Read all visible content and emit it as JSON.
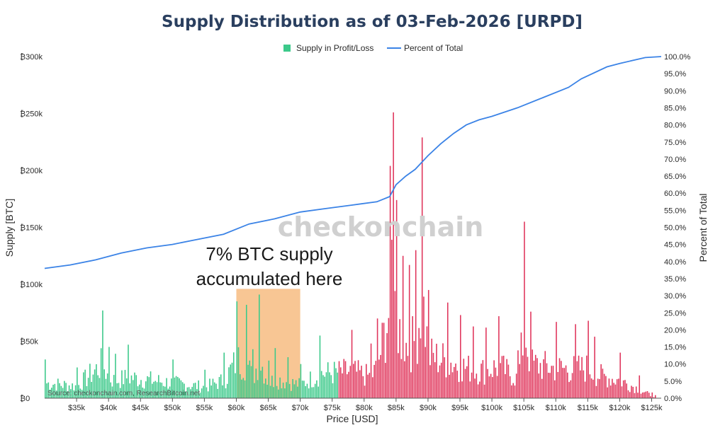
{
  "chart_data": {
    "type": "bar",
    "title": "Supply Distribution as of 03-Feb-2026 [URPD]",
    "xlabel": "Price [USD]",
    "ylabel": "Supply [BTC]",
    "y2label": "Percent of Total",
    "xlim": [
      30000,
      126500
    ],
    "ylim": [
      0,
      300000
    ],
    "y2lim": [
      0,
      100
    ],
    "x_ticks": [
      "$35k",
      "$40k",
      "$45k",
      "$50k",
      "$55k",
      "$60k",
      "$65k",
      "$70k",
      "$75k",
      "$80k",
      "$85k",
      "$90k",
      "$95k",
      "$100k",
      "$105k",
      "$110k",
      "$115k",
      "$120k",
      "$125k"
    ],
    "x_tick_values": [
      35000,
      40000,
      45000,
      50000,
      55000,
      60000,
      65000,
      70000,
      75000,
      80000,
      85000,
      90000,
      95000,
      100000,
      105000,
      110000,
      115000,
      120000,
      125000
    ],
    "y_ticks": [
      "₿0",
      "₿50k",
      "₿100k",
      "₿150k",
      "₿200k",
      "₿250k",
      "₿300k"
    ],
    "y_tick_values": [
      0,
      50000,
      100000,
      150000,
      200000,
      250000,
      300000
    ],
    "y2_ticks": [
      "0.0%",
      "5.0%",
      "10.0%",
      "15.0%",
      "20.0%",
      "25.0%",
      "30.0%",
      "35.0%",
      "40.0%",
      "45.0%",
      "50.0%",
      "55.0%",
      "60.0%",
      "65.0%",
      "70.0%",
      "75.0%",
      "80.0%",
      "85.0%",
      "90.0%",
      "95.0%",
      "100.0%"
    ],
    "y2_tick_values": [
      0,
      5,
      10,
      15,
      20,
      25,
      30,
      35,
      40,
      45,
      50,
      55,
      60,
      65,
      70,
      75,
      80,
      85,
      90,
      95,
      100
    ],
    "legend": [
      "Supply in Profit/Loss",
      "Percent of Total"
    ],
    "legend_position": "top-center",
    "grid": false,
    "colors": {
      "profit": "#3cc98a",
      "loss": "#e0365c",
      "percent_line": "#3b83e6",
      "highlight": "#f5b06b",
      "title": "#2a3f5f"
    },
    "profit_loss_boundary": 76000,
    "bar_sample": [
      {
        "x": 30000,
        "y": 34000
      },
      {
        "x": 35000,
        "y": 27000
      },
      {
        "x": 39000,
        "y": 77000
      },
      {
        "x": 40000,
        "y": 45000
      },
      {
        "x": 41000,
        "y": 39000
      },
      {
        "x": 43000,
        "y": 47000
      },
      {
        "x": 50000,
        "y": 34000
      },
      {
        "x": 55000,
        "y": 25000
      },
      {
        "x": 58000,
        "y": 40000
      },
      {
        "x": 60000,
        "y": 85000
      },
      {
        "x": 61500,
        "y": 82000
      },
      {
        "x": 62500,
        "y": 43000
      },
      {
        "x": 63500,
        "y": 91000
      },
      {
        "x": 65000,
        "y": 33000
      },
      {
        "x": 66000,
        "y": 44000
      },
      {
        "x": 68000,
        "y": 36000
      },
      {
        "x": 70000,
        "y": 30000
      },
      {
        "x": 73000,
        "y": 55000
      },
      {
        "x": 78000,
        "y": 60000
      },
      {
        "x": 81000,
        "y": 48000
      },
      {
        "x": 82000,
        "y": 70000
      },
      {
        "x": 84000,
        "y": 204000
      },
      {
        "x": 84400,
        "y": 251000
      },
      {
        "x": 85000,
        "y": 174000
      },
      {
        "x": 86000,
        "y": 125000
      },
      {
        "x": 87000,
        "y": 117000
      },
      {
        "x": 88000,
        "y": 130000
      },
      {
        "x": 89000,
        "y": 229000
      },
      {
        "x": 90000,
        "y": 95000
      },
      {
        "x": 93000,
        "y": 84000
      },
      {
        "x": 95000,
        "y": 73000
      },
      {
        "x": 97000,
        "y": 63000
      },
      {
        "x": 99000,
        "y": 62000
      },
      {
        "x": 101000,
        "y": 72000
      },
      {
        "x": 104000,
        "y": 42000
      },
      {
        "x": 105000,
        "y": 155000
      },
      {
        "x": 106000,
        "y": 76000
      },
      {
        "x": 110000,
        "y": 67000
      },
      {
        "x": 113000,
        "y": 65000
      },
      {
        "x": 115000,
        "y": 68000
      },
      {
        "x": 116000,
        "y": 54000
      },
      {
        "x": 120000,
        "y": 40000
      },
      {
        "x": 123000,
        "y": 20000
      },
      {
        "x": 125000,
        "y": 5000
      }
    ],
    "percent_line": {
      "x": [
        30000,
        34000,
        38000,
        42000,
        46000,
        50000,
        54000,
        58000,
        62000,
        66000,
        70000,
        74000,
        78000,
        82000,
        84000,
        85000,
        86500,
        88000,
        90000,
        92000,
        94000,
        96000,
        98000,
        100000,
        104000,
        108000,
        112000,
        114000,
        118000,
        120000,
        124000,
        126500
      ],
      "y": [
        38.0,
        39.0,
        40.5,
        42.5,
        44.0,
        45.0,
        46.5,
        48.0,
        51.0,
        52.5,
        54.5,
        55.5,
        56.5,
        57.5,
        59.0,
        62.5,
        65.0,
        67.0,
        71.0,
        74.5,
        77.5,
        80.0,
        81.5,
        82.5,
        85.0,
        88.0,
        91.0,
        93.5,
        97.0,
        98.0,
        99.7,
        100.0
      ]
    },
    "highlight_range": [
      60000,
      70000
    ],
    "annotations": [
      "7% BTC supply",
      "accumulated here"
    ],
    "watermark": "checkonchain",
    "source": "Source: checkonchain.com, ResearchBitcoin.net"
  }
}
